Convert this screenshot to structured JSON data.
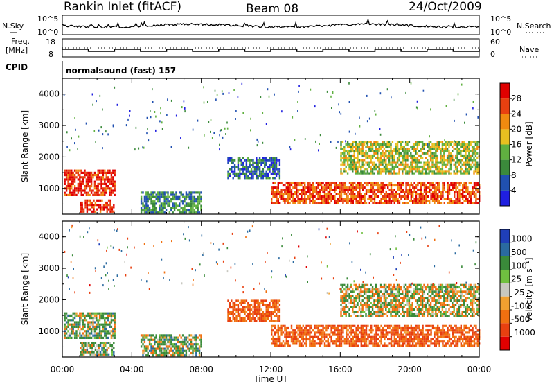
{
  "header": {
    "station": "Rankin Inlet (fitACF)",
    "beam": "Beam 08",
    "date": "24/Oct/2009"
  },
  "panels": {
    "nsky_label": "N.Sky",
    "nsearch_label": "N.Search",
    "nsky_ticks": [
      "10^5",
      "10^0"
    ],
    "nsearch_ticks": [
      "10^5",
      "10^0"
    ],
    "freq_label_1": "Freq.",
    "freq_label_2": "[MHz]",
    "freq_ticks": [
      "18",
      "8"
    ],
    "nave_label": "Nave",
    "nave_ticks": [
      "60",
      "0"
    ],
    "cpid_label": "CPID",
    "cpid_text": "normalsound (fast) 157"
  },
  "axes": {
    "x_ticks": [
      "00:00",
      "04:00",
      "08:00",
      "12:00",
      "16:00",
      "20:00",
      "00:00"
    ],
    "x_label": "Time UT",
    "y_label": "Slant Range [km]",
    "y_ticks": [
      "1000",
      "2000",
      "3000",
      "4000"
    ]
  },
  "power_scale": {
    "label": "Power [dB]",
    "ticks": [
      "4",
      "8",
      "12",
      "16",
      "20",
      "24",
      "28"
    ],
    "colors": [
      "#1f1fe0",
      "#2050b0",
      "#3b8a3b",
      "#60b040",
      "#e8c020",
      "#f08a10",
      "#e84010",
      "#e00000"
    ]
  },
  "velocity_scale": {
    "label": "Velocity [m s⁻¹]",
    "ticks": [
      "1000",
      "500",
      "100",
      "25",
      "-25",
      "-100",
      "-500",
      "-1000"
    ],
    "colors": [
      "#1f3fb8",
      "#2a6aa0",
      "#3a8a3a",
      "#70c040",
      "#c8c8c0",
      "#f0a030",
      "#f07010",
      "#e84010",
      "#e00000"
    ]
  },
  "chart_data": [
    {
      "type": "heatmap",
      "title": "Power [dB]",
      "xlabel": "Time UT",
      "ylabel": "Slant Range [km]",
      "xlim": [
        0,
        24
      ],
      "ylim": [
        180,
        4500
      ],
      "clim": [
        0,
        32
      ],
      "regions": [
        {
          "t0": 0.1,
          "t1": 3.0,
          "r0": 800,
          "r1": 1600,
          "value": 28
        },
        {
          "t0": 1.0,
          "t1": 3.0,
          "r0": 250,
          "r1": 650,
          "value": 28
        },
        {
          "t0": 4.5,
          "t1": 8.0,
          "r0": 250,
          "r1": 900,
          "value": 10
        },
        {
          "t0": 9.5,
          "t1": 12.5,
          "r0": 1300,
          "r1": 2000,
          "value": 7
        },
        {
          "t0": 12.0,
          "t1": 24.0,
          "r0": 500,
          "r1": 1200,
          "value": 26
        },
        {
          "t0": 16.0,
          "t1": 24.0,
          "r0": 1500,
          "r1": 2500,
          "value": 16
        }
      ]
    },
    {
      "type": "heatmap",
      "title": "Velocity [m s⁻¹]",
      "xlabel": "Time UT",
      "ylabel": "Slant Range [km]",
      "xlim": [
        0,
        24
      ],
      "ylim": [
        180,
        4500
      ],
      "clim": [
        -1000,
        1000
      ],
      "regions": [
        {
          "t0": 0.1,
          "t1": 3.0,
          "r0": 800,
          "r1": 1600,
          "value": 100
        },
        {
          "t0": 1.0,
          "t1": 3.0,
          "r0": 250,
          "r1": 650,
          "value": 100
        },
        {
          "t0": 4.5,
          "t1": 8.0,
          "r0": 250,
          "r1": 900,
          "value": 100
        },
        {
          "t0": 9.5,
          "t1": 12.5,
          "r0": 1300,
          "r1": 2000,
          "value": -300
        },
        {
          "t0": 12.0,
          "t1": 24.0,
          "r0": 500,
          "r1": 1200,
          "value": -300
        },
        {
          "t0": 16.0,
          "t1": 24.0,
          "r0": 1500,
          "r1": 2500,
          "value": 0
        }
      ]
    }
  ]
}
